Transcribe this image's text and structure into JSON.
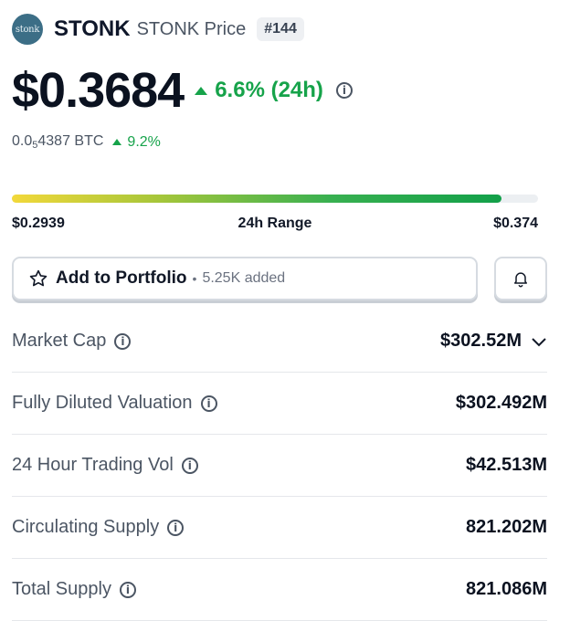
{
  "header": {
    "logo_text": "stonk",
    "coin_name": "STONK",
    "coin_subtitle": "STONK Price",
    "rank": "#144"
  },
  "price": {
    "value": "$0.3684",
    "change": "6.6% (24h)",
    "btc_prefix": "0.0",
    "btc_sub": "5",
    "btc_rest": "4387 BTC",
    "btc_change": "9.2%",
    "change_color": "#16a34a"
  },
  "range": {
    "low": "$0.2939",
    "label": "24h Range",
    "high": "$0.374",
    "fill_fraction": 0.93
  },
  "portfolio": {
    "button_label": "Add to Portfolio",
    "added_count": "5.25K added"
  },
  "stats": [
    {
      "label": "Market Cap",
      "value": "$302.52M",
      "expandable": true
    },
    {
      "label": "Fully Diluted Valuation",
      "value": "$302.492M",
      "expandable": false
    },
    {
      "label": "24 Hour Trading Vol",
      "value": "$42.513M",
      "expandable": false
    },
    {
      "label": "Circulating Supply",
      "value": "821.202M",
      "expandable": false
    },
    {
      "label": "Total Supply",
      "value": "821.086M",
      "expandable": false
    }
  ],
  "icons": {
    "info": "info-icon",
    "star": "star-icon",
    "bell": "bell-icon",
    "chevron": "chevron-down-icon"
  }
}
